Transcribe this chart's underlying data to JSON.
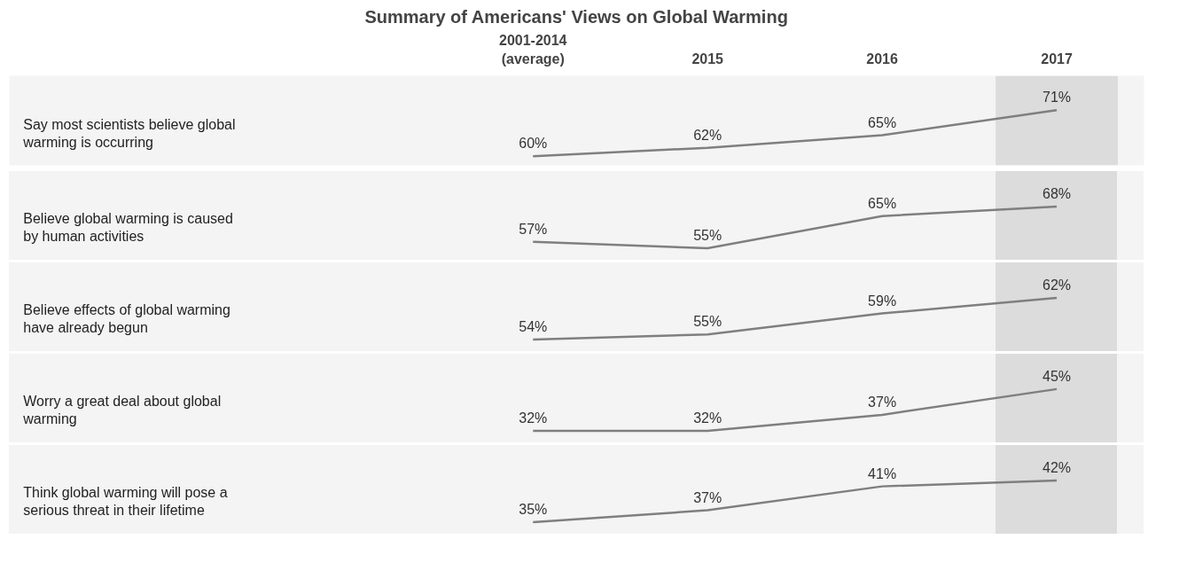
{
  "chart_data": [
    {
      "type": "line",
      "title": "Summary of Americans' Views on Global Warming",
      "ylabel": "Say most scientists believe global warming is occurring",
      "categories": [
        "2001-2014\n(average)",
        "2015",
        "2016",
        "2017"
      ],
      "tick_labels": "x",
      "bands": [
        {
          "axis": "x",
          "from": "2017",
          "to": "2017",
          "color": "#dcdcdc"
        }
      ],
      "series": [
        {
          "color": "#7f7f7f",
          "values": [
            60,
            62,
            65,
            71
          ],
          "value_labels": [
            "60%",
            "62%",
            "65%",
            "71%"
          ]
        }
      ]
    },
    {
      "type": "line",
      "ylabel": "Believe global warming is caused by human activities",
      "categories": [
        null,
        null,
        null,
        null
      ],
      "tick_labels": false,
      "series": [
        {
          "color": "#7f7f7f",
          "values": [
            57,
            55,
            65,
            68
          ],
          "value_labels": [
            "57%",
            "55%",
            "65%",
            "68%"
          ]
        }
      ]
    },
    {
      "type": "line",
      "ylabel": "Believe effects of global warming have already begun",
      "categories": [
        null,
        null,
        null,
        null
      ],
      "tick_labels": false,
      "series": [
        {
          "color": "#7f7f7f",
          "values": [
            54,
            55,
            59,
            62
          ],
          "value_labels": [
            "54%",
            "55%",
            "59%",
            "62%"
          ]
        }
      ]
    },
    {
      "type": "line",
      "ylabel": "Worry a great deal about global warming",
      "categories": [
        null,
        null,
        null,
        null
      ],
      "tick_labels": false,
      "series": [
        {
          "color": "#7f7f7f",
          "values": [
            32,
            32,
            37,
            45
          ],
          "value_labels": [
            "32%",
            "32%",
            "37%",
            "45%"
          ]
        }
      ]
    },
    {
      "type": "line",
      "ylabel": "Think global warming will pose a serious threat in their lifetime",
      "categories": [
        null,
        null,
        null,
        null
      ],
      "tick_labels": false,
      "series": [
        {
          "color": "#7f7f7f",
          "values": [
            35,
            37,
            41,
            42
          ],
          "value_labels": [
            "35%",
            "37%",
            "41%",
            "42%"
          ]
        }
      ]
    }
  ]
}
